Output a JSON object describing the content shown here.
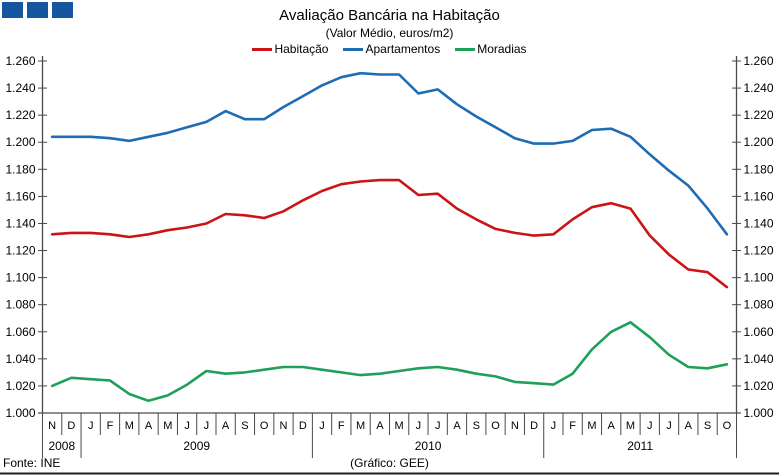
{
  "header": {
    "logo_color": "#1656A0",
    "logo_count": 3
  },
  "chart_data": {
    "type": "line",
    "title": "Avaliação Bancária na Habitação",
    "subtitle": "(Valor Médio, euros/m2)",
    "ylabel": "",
    "ylim": [
      1.0,
      1.26
    ],
    "ytick_step": 0.02,
    "ytick_labels": [
      "1.000",
      "1.020",
      "1.040",
      "1.060",
      "1.080",
      "1.100",
      "1.120",
      "1.140",
      "1.160",
      "1.180",
      "1.200",
      "1.220",
      "1.240",
      "1.260"
    ],
    "grid": false,
    "legend_position": "top",
    "axes": {
      "left": true,
      "right": true
    },
    "months": [
      "N",
      "D",
      "J",
      "F",
      "M",
      "A",
      "M",
      "J",
      "J",
      "A",
      "S",
      "O",
      "N",
      "D",
      "J",
      "F",
      "M",
      "A",
      "M",
      "J",
      "J",
      "A",
      "S",
      "O",
      "N",
      "D",
      "J",
      "F",
      "M",
      "A",
      "M",
      "J",
      "J",
      "A",
      "S",
      "O"
    ],
    "year_groups": [
      {
        "label": "2008",
        "months": 2
      },
      {
        "label": "2009",
        "months": 12
      },
      {
        "label": "2010",
        "months": 12
      },
      {
        "label": "2011",
        "months": 10
      }
    ],
    "series": [
      {
        "name": "Habitação",
        "color": "#CC1414",
        "values": [
          1.132,
          1.133,
          1.133,
          1.132,
          1.13,
          1.132,
          1.135,
          1.137,
          1.14,
          1.147,
          1.146,
          1.144,
          1.149,
          1.157,
          1.164,
          1.169,
          1.171,
          1.172,
          1.172,
          1.161,
          1.162,
          1.151,
          1.143,
          1.136,
          1.133,
          1.131,
          1.132,
          1.143,
          1.152,
          1.155,
          1.151,
          1.131,
          1.117,
          1.106,
          1.104,
          1.093
        ]
      },
      {
        "name": "Apartamentos",
        "color": "#1F6CB5",
        "values": [
          1.204,
          1.204,
          1.204,
          1.203,
          1.201,
          1.204,
          1.207,
          1.211,
          1.215,
          1.223,
          1.217,
          1.217,
          1.226,
          1.234,
          1.242,
          1.248,
          1.251,
          1.25,
          1.25,
          1.236,
          1.239,
          1.228,
          1.219,
          1.211,
          1.203,
          1.199,
          1.199,
          1.201,
          1.209,
          1.21,
          1.204,
          1.191,
          1.179,
          1.168,
          1.151,
          1.132
        ]
      },
      {
        "name": "Moradias",
        "color": "#1FA05A",
        "values": [
          1.02,
          1.026,
          1.025,
          1.024,
          1.014,
          1.009,
          1.013,
          1.021,
          1.031,
          1.029,
          1.03,
          1.032,
          1.034,
          1.034,
          1.032,
          1.03,
          1.028,
          1.029,
          1.031,
          1.033,
          1.034,
          1.032,
          1.029,
          1.027,
          1.023,
          1.022,
          1.021,
          1.029,
          1.047,
          1.06,
          1.067,
          1.056,
          1.043,
          1.034,
          1.033,
          1.036
        ]
      }
    ]
  },
  "footer": {
    "source": "Fonte: INE",
    "credit": "(Gráfico: GEE)"
  }
}
